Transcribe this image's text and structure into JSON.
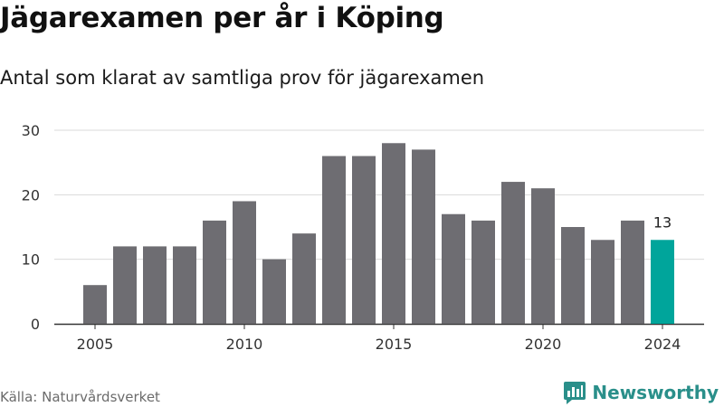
{
  "header": {
    "title": "Jägarexamen per år i Köping",
    "subtitle": "Antal som klarat av samtliga prov för jägarexamen"
  },
  "footer": {
    "source": "Källa: Naturvårdsverket",
    "brand": "Newsworthy",
    "brand_icon": "bar-chart-speech-bubble-icon"
  },
  "colors": {
    "bar": "#6e6d72",
    "highlight": "#00a59b",
    "grid": "#d9d9d9",
    "axis": "#333333",
    "brand": "#2a8f8a"
  },
  "chart_data": {
    "type": "bar",
    "title": "",
    "xlabel": "",
    "ylabel": "",
    "x": [
      2005,
      2006,
      2007,
      2008,
      2009,
      2010,
      2011,
      2012,
      2013,
      2014,
      2015,
      2016,
      2017,
      2018,
      2019,
      2020,
      2021,
      2022,
      2023,
      2024
    ],
    "values": [
      6,
      12,
      12,
      12,
      16,
      19,
      10,
      14,
      26,
      26,
      28,
      27,
      17,
      16,
      22,
      21,
      15,
      13,
      16,
      13
    ],
    "highlight": {
      "x": 2024,
      "label": "13"
    },
    "ylim": [
      0,
      30
    ],
    "yticks": [
      0,
      10,
      20,
      30
    ],
    "xticks": [
      2005,
      2010,
      2015,
      2020,
      2024
    ],
    "grid": true,
    "legend": "none"
  }
}
